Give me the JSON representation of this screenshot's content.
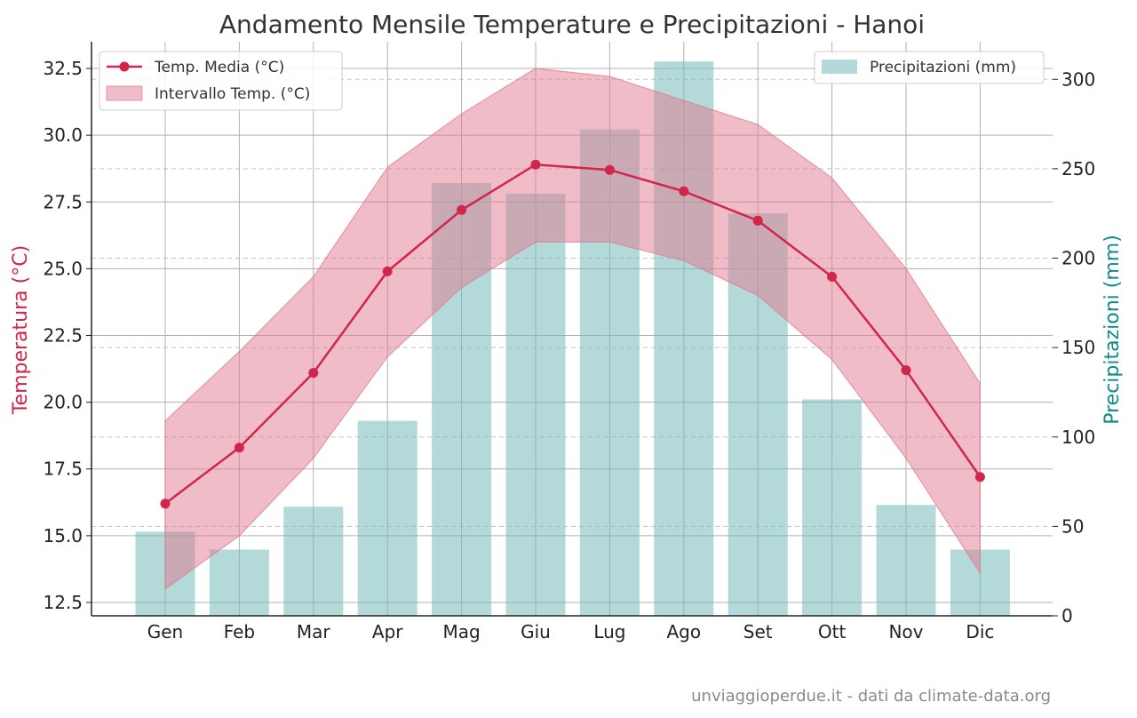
{
  "colors": {
    "temp": "#d0264a",
    "range": "#e07a90",
    "precip": "#74b9b9",
    "precip_axis": "#0f8a8a"
  },
  "source_note": "unviaggioperdue.it - dati da climate-data.org",
  "chart_data": {
    "type": "bar",
    "title": "Andamento Mensile Temperature e Precipitazioni - Hanoi",
    "categories": [
      "Gen",
      "Feb",
      "Mar",
      "Apr",
      "Mag",
      "Giu",
      "Lug",
      "Ago",
      "Set",
      "Ott",
      "Nov",
      "Dic"
    ],
    "y_left": {
      "label": "Temperatura (°C)",
      "ylim": [
        12,
        33.5
      ],
      "ticks": [
        "12.5",
        "15.0",
        "17.5",
        "20.0",
        "22.5",
        "25.0",
        "27.5",
        "30.0",
        "32.5"
      ]
    },
    "y_right": {
      "label": "Precipitazioni (mm)",
      "ylim": [
        0,
        321
      ],
      "ticks": [
        "0",
        "50",
        "100",
        "150",
        "200",
        "250",
        "300"
      ]
    },
    "series": [
      {
        "name": "Temp. Media (°C)",
        "type": "line",
        "axis": "left",
        "values": [
          16.2,
          18.3,
          21.1,
          24.9,
          27.2,
          28.9,
          28.7,
          27.9,
          26.8,
          24.7,
          21.2,
          17.2
        ]
      },
      {
        "name": "Intervallo Temp. (°C)",
        "type": "area",
        "axis": "left",
        "low": [
          13.0,
          15.0,
          17.9,
          21.7,
          24.3,
          26.0,
          26.0,
          25.3,
          24.0,
          21.6,
          17.9,
          13.6
        ],
        "high": [
          19.3,
          21.9,
          24.7,
          28.8,
          30.8,
          32.5,
          32.2,
          31.3,
          30.4,
          28.4,
          25.0,
          20.7
        ]
      },
      {
        "name": "Precipitazioni (mm)",
        "type": "bar",
        "axis": "right",
        "values": [
          47,
          37,
          61,
          109,
          242,
          236,
          272,
          310,
          225,
          121,
          62,
          37
        ]
      }
    ],
    "grid": true,
    "legend_left_position": "top-left",
    "legend_right_position": "top-right"
  }
}
